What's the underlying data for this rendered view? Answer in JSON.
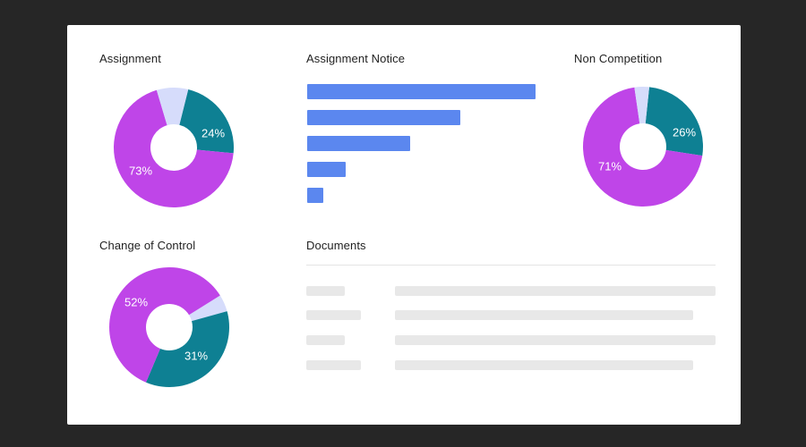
{
  "colors": {
    "purple": "#bf45e8",
    "teal": "#0e8093",
    "lavender": "#d6dcfb",
    "bar_blue": "#5b87ef",
    "skeleton": "#e8e8e8"
  },
  "panels": {
    "assignment": {
      "title": "Assignment",
      "slices": [
        {
          "value": 73,
          "label": "73%",
          "color": "#bf45e8"
        },
        {
          "value": 24,
          "label": "24%",
          "color": "#0e8093"
        },
        {
          "value": 9,
          "label": "",
          "color": "#d6dcfb"
        }
      ]
    },
    "assignment_notice": {
      "title": "Assignment Notice"
    },
    "non_competition": {
      "title": "Non Competition",
      "slices": [
        {
          "value": 71,
          "label": "71%",
          "color": "#bf45e8"
        },
        {
          "value": 26,
          "label": "26%",
          "color": "#0e8093"
        },
        {
          "value": 4,
          "label": "",
          "color": "#d6dcfb"
        }
      ]
    },
    "change_of_control": {
      "title": "Change of Control",
      "slices": [
        {
          "value": 52,
          "label": "52%",
          "color": "#bf45e8"
        },
        {
          "value": 31,
          "label": "31%",
          "color": "#0e8093"
        },
        {
          "value": 4,
          "label": "",
          "color": "#d6dcfb"
        }
      ]
    },
    "documents": {
      "title": "Documents",
      "rows": 4
    }
  },
  "chart_data": [
    {
      "type": "pie",
      "title": "Assignment",
      "categories": [
        "",
        "",
        ""
      ],
      "values": [
        73,
        24,
        9
      ]
    },
    {
      "type": "bar",
      "title": "Assignment Notice",
      "orientation": "horizontal",
      "categories": [
        "",
        "",
        "",
        "",
        ""
      ],
      "values": [
        100,
        67,
        45,
        17,
        7
      ]
    },
    {
      "type": "pie",
      "title": "Non Competition",
      "categories": [
        "",
        "",
        ""
      ],
      "values": [
        71,
        26,
        4
      ]
    },
    {
      "type": "pie",
      "title": "Change of Control",
      "categories": [
        "",
        "",
        ""
      ],
      "values": [
        52,
        31,
        4
      ]
    }
  ]
}
